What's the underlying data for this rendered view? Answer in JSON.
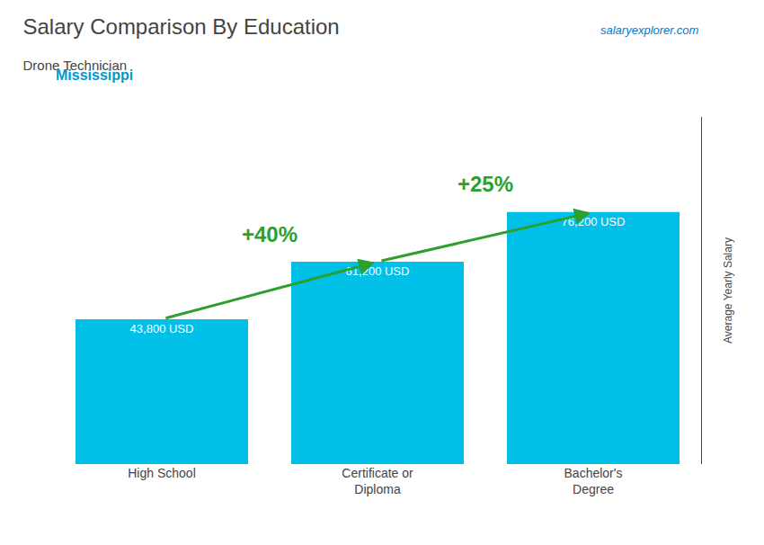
{
  "chart_data": {
    "type": "bar",
    "title": "Salary Comparison By Education",
    "subtitle": "Drone Technician",
    "ylabel": "Average Yearly Salary",
    "annotations": [
      "Mississippi",
      "salaryexplorer.com",
      "+40%",
      "+25%"
    ],
    "categories": [
      "High School",
      "Certificate or\nDiploma",
      "Bachelor's\nDegree"
    ],
    "values": [
      43800,
      61200,
      76200
    ],
    "value_labels": [
      "43,800 USD",
      "61,200 USD",
      "76,200 USD"
    ],
    "data_labels": true,
    "color": "#00C0E8",
    "ylim": [
      0,
      105000
    ],
    "grid": false,
    "tick_labels": "x"
  }
}
